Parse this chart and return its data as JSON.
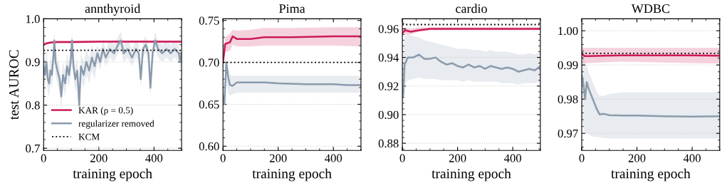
{
  "chart_data": [
    {
      "type": "line",
      "title": "annthyroid",
      "xlabel": "training epoch",
      "ylabel": "test AUROC",
      "xlim": [
        0,
        500
      ],
      "xticks": [
        0,
        200,
        400
      ],
      "ylim": [
        0.695,
        1.0
      ],
      "yticks": [
        0.7,
        0.8,
        0.9,
        {
          "value": 1.0,
          "label": "1.0"
        }
      ],
      "grid": "y",
      "legend": "lower left",
      "line_style": "solid",
      "marker": "none",
      "series": [
        {
          "name": "KAR (ρ = 0.5)",
          "color": "#cc1a5a",
          "x": [
            0,
            10,
            25,
            50,
            100,
            200,
            300,
            400,
            500
          ],
          "values": [
            0.94,
            0.943,
            0.945,
            0.946,
            0.946,
            0.947,
            0.947,
            0.947,
            0.947
          ],
          "lower": [
            0.937,
            0.94,
            0.942,
            0.943,
            0.943,
            0.944,
            0.944,
            0.944,
            0.944
          ],
          "upper": [
            0.943,
            0.946,
            0.948,
            0.949,
            0.949,
            0.95,
            0.95,
            0.95,
            0.95
          ]
        },
        {
          "name": "regularizer removed",
          "color": "#8a9bad",
          "x": [
            0,
            5,
            10,
            15,
            20,
            25,
            30,
            35,
            39,
            43,
            50,
            58,
            64,
            70,
            78,
            85,
            92,
            98,
            103,
            108,
            115,
            122,
            129,
            135,
            145,
            155,
            165,
            175,
            185,
            195,
            205,
            215,
            225,
            240,
            255,
            270,
            280,
            290,
            305,
            320,
            335,
            345,
            352,
            360,
            370,
            380,
            387,
            395,
            404,
            415,
            430,
            445,
            460,
            475,
            490,
            495,
            500
          ],
          "values": [
            0.89,
            0.87,
            0.9,
            0.86,
            0.85,
            0.88,
            0.87,
            0.91,
            0.95,
            0.9,
            0.88,
            0.86,
            0.82,
            0.87,
            0.85,
            0.89,
            0.87,
            0.9,
            0.95,
            0.89,
            0.86,
            0.88,
            0.8,
            0.89,
            0.87,
            0.9,
            0.88,
            0.91,
            0.89,
            0.92,
            0.9,
            0.93,
            0.91,
            0.93,
            0.92,
            0.94,
            0.95,
            0.92,
            0.93,
            0.91,
            0.93,
            0.92,
            0.86,
            0.93,
            0.94,
            0.92,
            0.84,
            0.92,
            0.95,
            0.93,
            0.92,
            0.93,
            0.92,
            0.93,
            0.92,
            0.9,
            0.92
          ],
          "lower": [
            0.86,
            0.84,
            0.87,
            0.83,
            0.82,
            0.85,
            0.84,
            0.88,
            0.92,
            0.87,
            0.85,
            0.83,
            0.79,
            0.84,
            0.82,
            0.86,
            0.84,
            0.87,
            0.92,
            0.86,
            0.83,
            0.85,
            0.77,
            0.86,
            0.84,
            0.87,
            0.85,
            0.88,
            0.86,
            0.9,
            0.88,
            0.91,
            0.89,
            0.91,
            0.9,
            0.92,
            0.93,
            0.9,
            0.91,
            0.89,
            0.91,
            0.9,
            0.84,
            0.91,
            0.92,
            0.9,
            0.82,
            0.9,
            0.93,
            0.91,
            0.9,
            0.91,
            0.9,
            0.91,
            0.9,
            0.88,
            0.9
          ],
          "upper": [
            0.92,
            0.9,
            0.93,
            0.89,
            0.88,
            0.91,
            0.9,
            0.94,
            0.97,
            0.93,
            0.91,
            0.89,
            0.85,
            0.9,
            0.88,
            0.92,
            0.9,
            0.93,
            0.97,
            0.92,
            0.89,
            0.91,
            0.83,
            0.92,
            0.9,
            0.93,
            0.91,
            0.94,
            0.92,
            0.94,
            0.92,
            0.95,
            0.93,
            0.95,
            0.94,
            0.96,
            0.97,
            0.94,
            0.95,
            0.93,
            0.95,
            0.94,
            0.88,
            0.95,
            0.96,
            0.94,
            0.86,
            0.94,
            0.97,
            0.95,
            0.94,
            0.95,
            0.94,
            0.95,
            0.94,
            0.92,
            0.94
          ]
        }
      ],
      "ref_lines": [
        {
          "axis": "y",
          "value": 0.927,
          "label": "KCM",
          "color": "#000000",
          "line_style": "dotted"
        }
      ]
    },
    {
      "type": "line",
      "title": "Pima",
      "xlabel": "training epoch",
      "xlim": [
        0,
        500
      ],
      "xticks": [
        0,
        200,
        400
      ],
      "ylim": [
        0.595,
        0.752
      ],
      "yticks": [
        {
          "value": 0.6,
          "label": "0.60"
        },
        {
          "value": 0.65,
          "label": "0.65"
        },
        {
          "value": 0.7,
          "label": "0.70"
        },
        {
          "value": 0.75,
          "label": "0.75"
        }
      ],
      "grid": "y",
      "line_style": "solid",
      "marker": "none",
      "series": [
        {
          "color": "#cc1a5a",
          "x": [
            0,
            8,
            25,
            35,
            50,
            100,
            150,
            250,
            400,
            500
          ],
          "values": [
            0.7,
            0.722,
            0.724,
            0.731,
            0.728,
            0.728,
            0.73,
            0.73,
            0.731,
            0.731
          ],
          "lower": [
            0.693,
            0.712,
            0.714,
            0.721,
            0.719,
            0.719,
            0.72,
            0.72,
            0.72,
            0.719
          ],
          "upper": [
            0.705,
            0.73,
            0.734,
            0.739,
            0.738,
            0.739,
            0.741,
            0.741,
            0.742,
            0.742
          ]
        },
        {
          "color": "#8a9bad",
          "x": [
            0,
            5,
            12,
            18,
            25,
            35,
            50,
            100,
            150,
            200,
            300,
            400,
            450,
            500
          ],
          "values": [
            0.66,
            0.65,
            0.7,
            0.684,
            0.673,
            0.672,
            0.676,
            0.676,
            0.676,
            0.675,
            0.674,
            0.674,
            0.673,
            0.673
          ],
          "lower": [
            0.64,
            0.635,
            0.68,
            0.665,
            0.66,
            0.662,
            0.664,
            0.664,
            0.664,
            0.664,
            0.664,
            0.664,
            0.664,
            0.664
          ],
          "upper": [
            0.68,
            0.67,
            0.705,
            0.695,
            0.685,
            0.684,
            0.684,
            0.684,
            0.684,
            0.684,
            0.684,
            0.684,
            0.684,
            0.684
          ]
        }
      ],
      "ref_lines": [
        {
          "axis": "y",
          "value": 0.7,
          "color": "#000000",
          "line_style": "dotted"
        }
      ]
    },
    {
      "type": "line",
      "title": "cardio",
      "xlabel": "training epoch",
      "xlim": [
        0,
        500
      ],
      "xticks": [
        0,
        200,
        400
      ],
      "ylim": [
        0.875,
        0.967
      ],
      "yticks": [
        {
          "value": 0.88,
          "label": "0.88"
        },
        {
          "value": 0.9,
          "label": "0.90"
        },
        {
          "value": 0.92,
          "label": "0.92"
        },
        {
          "value": 0.94,
          "label": "0.94"
        },
        {
          "value": 0.96,
          "label": "0.96"
        }
      ],
      "grid": "y",
      "line_style": "solid",
      "marker": "none",
      "series": [
        {
          "color": "#cc1a5a",
          "x": [
            0,
            10,
            30,
            60,
            100,
            200,
            500
          ],
          "values": [
            0.957,
            0.959,
            0.958,
            0.959,
            0.96,
            0.96,
            0.96
          ],
          "lower": [
            0.955,
            0.956,
            0.956,
            0.958,
            0.959,
            0.959,
            0.959
          ],
          "upper": [
            0.96,
            0.961,
            0.96,
            0.961,
            0.961,
            0.961,
            0.961
          ]
        },
        {
          "color": "#8a9bad",
          "x": [
            0,
            3,
            8,
            20,
            40,
            60,
            80,
            100,
            120,
            140,
            160,
            180,
            200,
            220,
            240,
            260,
            280,
            300,
            320,
            340,
            360,
            380,
            400,
            420,
            440,
            460,
            480,
            500
          ],
          "values": [
            0.918,
            0.913,
            0.935,
            0.94,
            0.94,
            0.942,
            0.939,
            0.939,
            0.94,
            0.937,
            0.935,
            0.936,
            0.934,
            0.933,
            0.935,
            0.933,
            0.934,
            0.932,
            0.934,
            0.933,
            0.932,
            0.933,
            0.932,
            0.93,
            0.931,
            0.932,
            0.931,
            0.934
          ],
          "lower": [
            0.91,
            0.905,
            0.922,
            0.924,
            0.925,
            0.926,
            0.925,
            0.925,
            0.925,
            0.924,
            0.924,
            0.924,
            0.924,
            0.923,
            0.924,
            0.923,
            0.923,
            0.923,
            0.923,
            0.923,
            0.922,
            0.922,
            0.922,
            0.921,
            0.922,
            0.922,
            0.922,
            0.923
          ],
          "upper": [
            0.93,
            0.94,
            0.955,
            0.956,
            0.955,
            0.954,
            0.952,
            0.951,
            0.95,
            0.949,
            0.948,
            0.947,
            0.946,
            0.946,
            0.946,
            0.945,
            0.945,
            0.944,
            0.945,
            0.944,
            0.944,
            0.944,
            0.943,
            0.942,
            0.942,
            0.943,
            0.942,
            0.944
          ]
        }
      ],
      "ref_lines": [
        {
          "axis": "y",
          "value": 0.963,
          "color": "#000000",
          "line_style": "dotted"
        }
      ]
    },
    {
      "type": "line",
      "title": "WDBC",
      "xlabel": "training epoch",
      "xlim": [
        0,
        500
      ],
      "xticks": [
        0,
        200,
        400
      ],
      "ylim": [
        0.965,
        1.0035
      ],
      "yticks": [
        {
          "value": 0.97,
          "label": "0.97"
        },
        {
          "value": 0.98,
          "label": "0.98"
        },
        {
          "value": 0.99,
          "label": "0.99"
        },
        {
          "value": 1.0,
          "label": "1.00"
        }
      ],
      "grid": "y",
      "line_style": "solid",
      "marker": "none",
      "series": [
        {
          "color": "#cc1a5a",
          "x": [
            0,
            10,
            20,
            140,
            400,
            500
          ],
          "values": [
            0.9932,
            0.9926,
            0.9926,
            0.9928,
            0.9928,
            0.9927
          ],
          "lower": [
            0.9905,
            0.9905,
            0.9905,
            0.991,
            0.9905,
            0.9904
          ],
          "upper": [
            0.995,
            0.995,
            0.995,
            0.995,
            0.995,
            0.995
          ]
        },
        {
          "color": "#8a9bad",
          "x": [
            0,
            5,
            12,
            18,
            25,
            35,
            45,
            55,
            65,
            80,
            100,
            150,
            200,
            300,
            400,
            500
          ],
          "values": [
            0.987,
            0.985,
            0.98,
            0.985,
            0.983,
            0.981,
            0.979,
            0.977,
            0.9755,
            0.9757,
            0.9753,
            0.9752,
            0.9752,
            0.975,
            0.9749,
            0.975
          ],
          "lower": [
            0.975,
            0.972,
            0.97,
            0.97,
            0.97,
            0.969,
            0.969,
            0.969,
            0.9688,
            0.9686,
            0.9685,
            0.9685,
            0.9685,
            0.9685,
            0.9685,
            0.9685
          ],
          "upper": [
            0.999,
            0.996,
            0.99,
            0.99,
            0.988,
            0.986,
            0.984,
            0.982,
            0.981,
            0.981,
            0.9815,
            0.982,
            0.982,
            0.982,
            0.982,
            0.982
          ]
        }
      ],
      "ref_lines": [
        {
          "axis": "y",
          "value": 0.9934,
          "color": "#000000",
          "line_style": "dotted"
        }
      ]
    }
  ]
}
